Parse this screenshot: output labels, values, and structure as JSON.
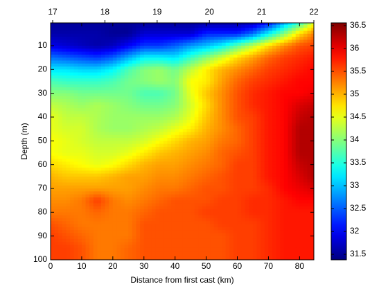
{
  "chart_data": {
    "type": "contourf",
    "xlabel": "Distance from first cast (km)",
    "ylabel": "Depth (m)",
    "xlim": [
      0,
      84.6
    ],
    "xticks": [
      0,
      10,
      20,
      30,
      40,
      50,
      60,
      70,
      80
    ],
    "x2lim": [
      16.96,
      22
    ],
    "x2ticks": [
      17,
      18,
      19,
      20,
      21,
      22
    ],
    "ylim": [
      0.4,
      100
    ],
    "yticks": [
      10,
      20,
      30,
      40,
      50,
      60,
      70,
      80,
      90,
      100
    ],
    "y_reversed": true,
    "colormap": "jet",
    "clim": [
      31.38,
      36.56
    ],
    "cticks": [
      31.5,
      32,
      32.5,
      33,
      33.5,
      34,
      34.5,
      35,
      35.5,
      36,
      36.5
    ],
    "x": [
      0,
      5,
      10,
      15,
      20,
      25,
      30,
      35,
      40,
      45,
      50,
      55,
      60,
      65,
      70,
      75,
      80,
      85
    ],
    "y": [
      0,
      5,
      10,
      15,
      20,
      25,
      30,
      35,
      40,
      45,
      50,
      55,
      60,
      65,
      70,
      75,
      80,
      85,
      90,
      95,
      100
    ],
    "z": [
      [
        31.5,
        31.5,
        31.5,
        31.5,
        31.5,
        31.5,
        31.5,
        31.5,
        31.5,
        31.5,
        31.5,
        31.5,
        31.5,
        31.6,
        32,
        32.8,
        33.5,
        34.5
      ],
      [
        31.6,
        31.6,
        31.6,
        31.6,
        31.5,
        31.5,
        31.8,
        31.8,
        31.8,
        31.8,
        32.2,
        32.2,
        32.2,
        32.6,
        33.3,
        34,
        34.8,
        35.3
      ],
      [
        31.9,
        31.8,
        31.7,
        31.6,
        31.7,
        32,
        32.3,
        32.3,
        32.5,
        32.8,
        33,
        33.3,
        33.8,
        34.3,
        34.8,
        35.2,
        35.5,
        35.6
      ],
      [
        32.6,
        32.5,
        32.4,
        32.3,
        32.5,
        32.9,
        33.3,
        33.3,
        33.2,
        33.6,
        34,
        34.4,
        34.8,
        35.1,
        35.4,
        35.6,
        35.7,
        35.8
      ],
      [
        33.2,
        33.2,
        33.1,
        33.1,
        33.3,
        33.7,
        34,
        34.1,
        33.9,
        34.3,
        34.7,
        35,
        35.2,
        35.4,
        35.6,
        35.7,
        35.8,
        35.9
      ],
      [
        33.7,
        33.6,
        33.6,
        33.6,
        33.7,
        33.9,
        34,
        34.1,
        34,
        34.6,
        34.7,
        35.1,
        35.4,
        35.6,
        35.7,
        35.8,
        35.9,
        35.9
      ],
      [
        34,
        34,
        33.9,
        33.9,
        33.9,
        33.9,
        33.7,
        33.7,
        33.9,
        34.5,
        34.9,
        35.2,
        35.5,
        35.7,
        35.8,
        35.9,
        35.9,
        36
      ],
      [
        34.3,
        34.2,
        34.1,
        34.2,
        34.1,
        34,
        33.9,
        33.9,
        34,
        34.4,
        34.8,
        35.2,
        35.5,
        35.7,
        35.8,
        35.9,
        36.1,
        36.2
      ],
      [
        34.5,
        34.3,
        34.3,
        34.2,
        34.1,
        34.1,
        34.1,
        34.1,
        34.2,
        34.5,
        34.9,
        35.2,
        35.5,
        35.6,
        35.8,
        35.9,
        36.2,
        36.3
      ],
      [
        34.5,
        34.4,
        34.4,
        34.2,
        34.1,
        34.1,
        34.2,
        34.3,
        34.5,
        34.7,
        35,
        35.2,
        35.4,
        35.6,
        35.8,
        35.9,
        36.3,
        36.3
      ],
      [
        34.6,
        34.5,
        34.4,
        34.3,
        34.3,
        34.3,
        34.4,
        34.6,
        34.8,
        35,
        35.1,
        35.3,
        35.4,
        35.6,
        35.8,
        35.9,
        36.3,
        36.3
      ],
      [
        34.6,
        34.5,
        34.5,
        34.4,
        34.4,
        34.5,
        34.7,
        34.9,
        35,
        35.1,
        35.2,
        35.4,
        35.5,
        35.6,
        35.8,
        35.9,
        36.3,
        36.3
      ],
      [
        34.8,
        34.7,
        34.6,
        34.5,
        34.6,
        34.8,
        35,
        35.1,
        35.1,
        35.2,
        35.3,
        35.4,
        35.6,
        35.6,
        35.8,
        35.9,
        36.2,
        36.3
      ],
      [
        35,
        34.9,
        34.9,
        34.9,
        35,
        35.1,
        35.1,
        35.2,
        35.2,
        35.3,
        35.4,
        35.5,
        35.6,
        35.6,
        35.8,
        35.9,
        36.1,
        36.3
      ],
      [
        35.1,
        35.1,
        35.1,
        35.1,
        35.1,
        35.1,
        35.2,
        35.3,
        35.3,
        35.4,
        35.5,
        35.5,
        35.6,
        35.6,
        35.7,
        35.9,
        36,
        36.1
      ],
      [
        35.2,
        35.2,
        35.3,
        35.6,
        35.3,
        35.2,
        35.3,
        35.4,
        35.5,
        35.5,
        35.5,
        35.6,
        35.6,
        35.7,
        35.7,
        35.8,
        35.9,
        35.9
      ],
      [
        35.3,
        35.3,
        35.3,
        35.4,
        35.3,
        35.3,
        35.4,
        35.5,
        35.5,
        35.5,
        35.6,
        35.6,
        35.6,
        35.7,
        35.7,
        35.8,
        35.8,
        35.8
      ],
      [
        35.5,
        35.4,
        35.3,
        35.3,
        35.3,
        35.3,
        35.5,
        35.5,
        35.5,
        35.5,
        35.5,
        35.6,
        35.6,
        35.6,
        35.7,
        35.8,
        35.8,
        35.8
      ],
      [
        35.6,
        35.5,
        35.4,
        35.3,
        35.3,
        35.3,
        35.5,
        35.5,
        35.5,
        35.5,
        35.5,
        35.5,
        35.6,
        35.6,
        35.7,
        35.8,
        35.8,
        35.8
      ],
      [
        35.6,
        35.6,
        35.5,
        35.3,
        35.3,
        35.4,
        35.5,
        35.5,
        35.5,
        35.5,
        35.5,
        35.5,
        35.6,
        35.6,
        35.7,
        35.8,
        35.8,
        35.8
      ],
      [
        35.6,
        35.6,
        35.5,
        35.3,
        35.3,
        35.4,
        35.5,
        35.5,
        35.5,
        35.5,
        35.5,
        35.5,
        35.6,
        35.6,
        35.7,
        35.8,
        35.8,
        35.8
      ]
    ]
  }
}
